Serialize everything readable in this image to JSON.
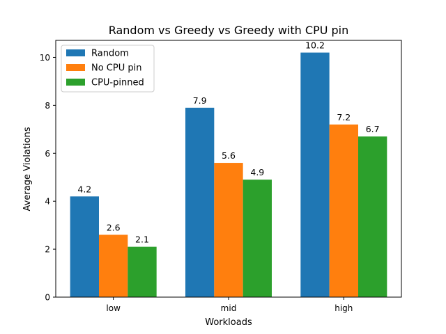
{
  "chart_data": {
    "type": "bar",
    "title": "Random vs Greedy vs Greedy with CPU pin",
    "xlabel": "Workloads",
    "ylabel": "Average Violations",
    "categories": [
      "low",
      "mid",
      "high"
    ],
    "series": [
      {
        "name": "Random",
        "values": [
          4.2,
          7.9,
          10.2
        ],
        "value_labels": [
          "4.2",
          "7.9",
          "10.2"
        ],
        "color": "#1f77b4"
      },
      {
        "name": "No CPU pin",
        "values": [
          2.6,
          5.6,
          7.2
        ],
        "value_labels": [
          "2.6",
          "5.6",
          "7.2"
        ],
        "color": "#ff7f0e"
      },
      {
        "name": "CPU-pinned",
        "values": [
          2.1,
          4.9,
          6.7
        ],
        "value_labels": [
          "2.1",
          "4.9",
          "6.7"
        ],
        "color": "#2ca02c"
      }
    ],
    "ylim": [
      0,
      10.71
    ],
    "yticks": [
      0,
      2,
      4,
      6,
      8,
      10
    ],
    "ytick_labels": [
      "0",
      "2",
      "4",
      "6",
      "8",
      "10"
    ],
    "grid": false,
    "legend": "top-left"
  }
}
